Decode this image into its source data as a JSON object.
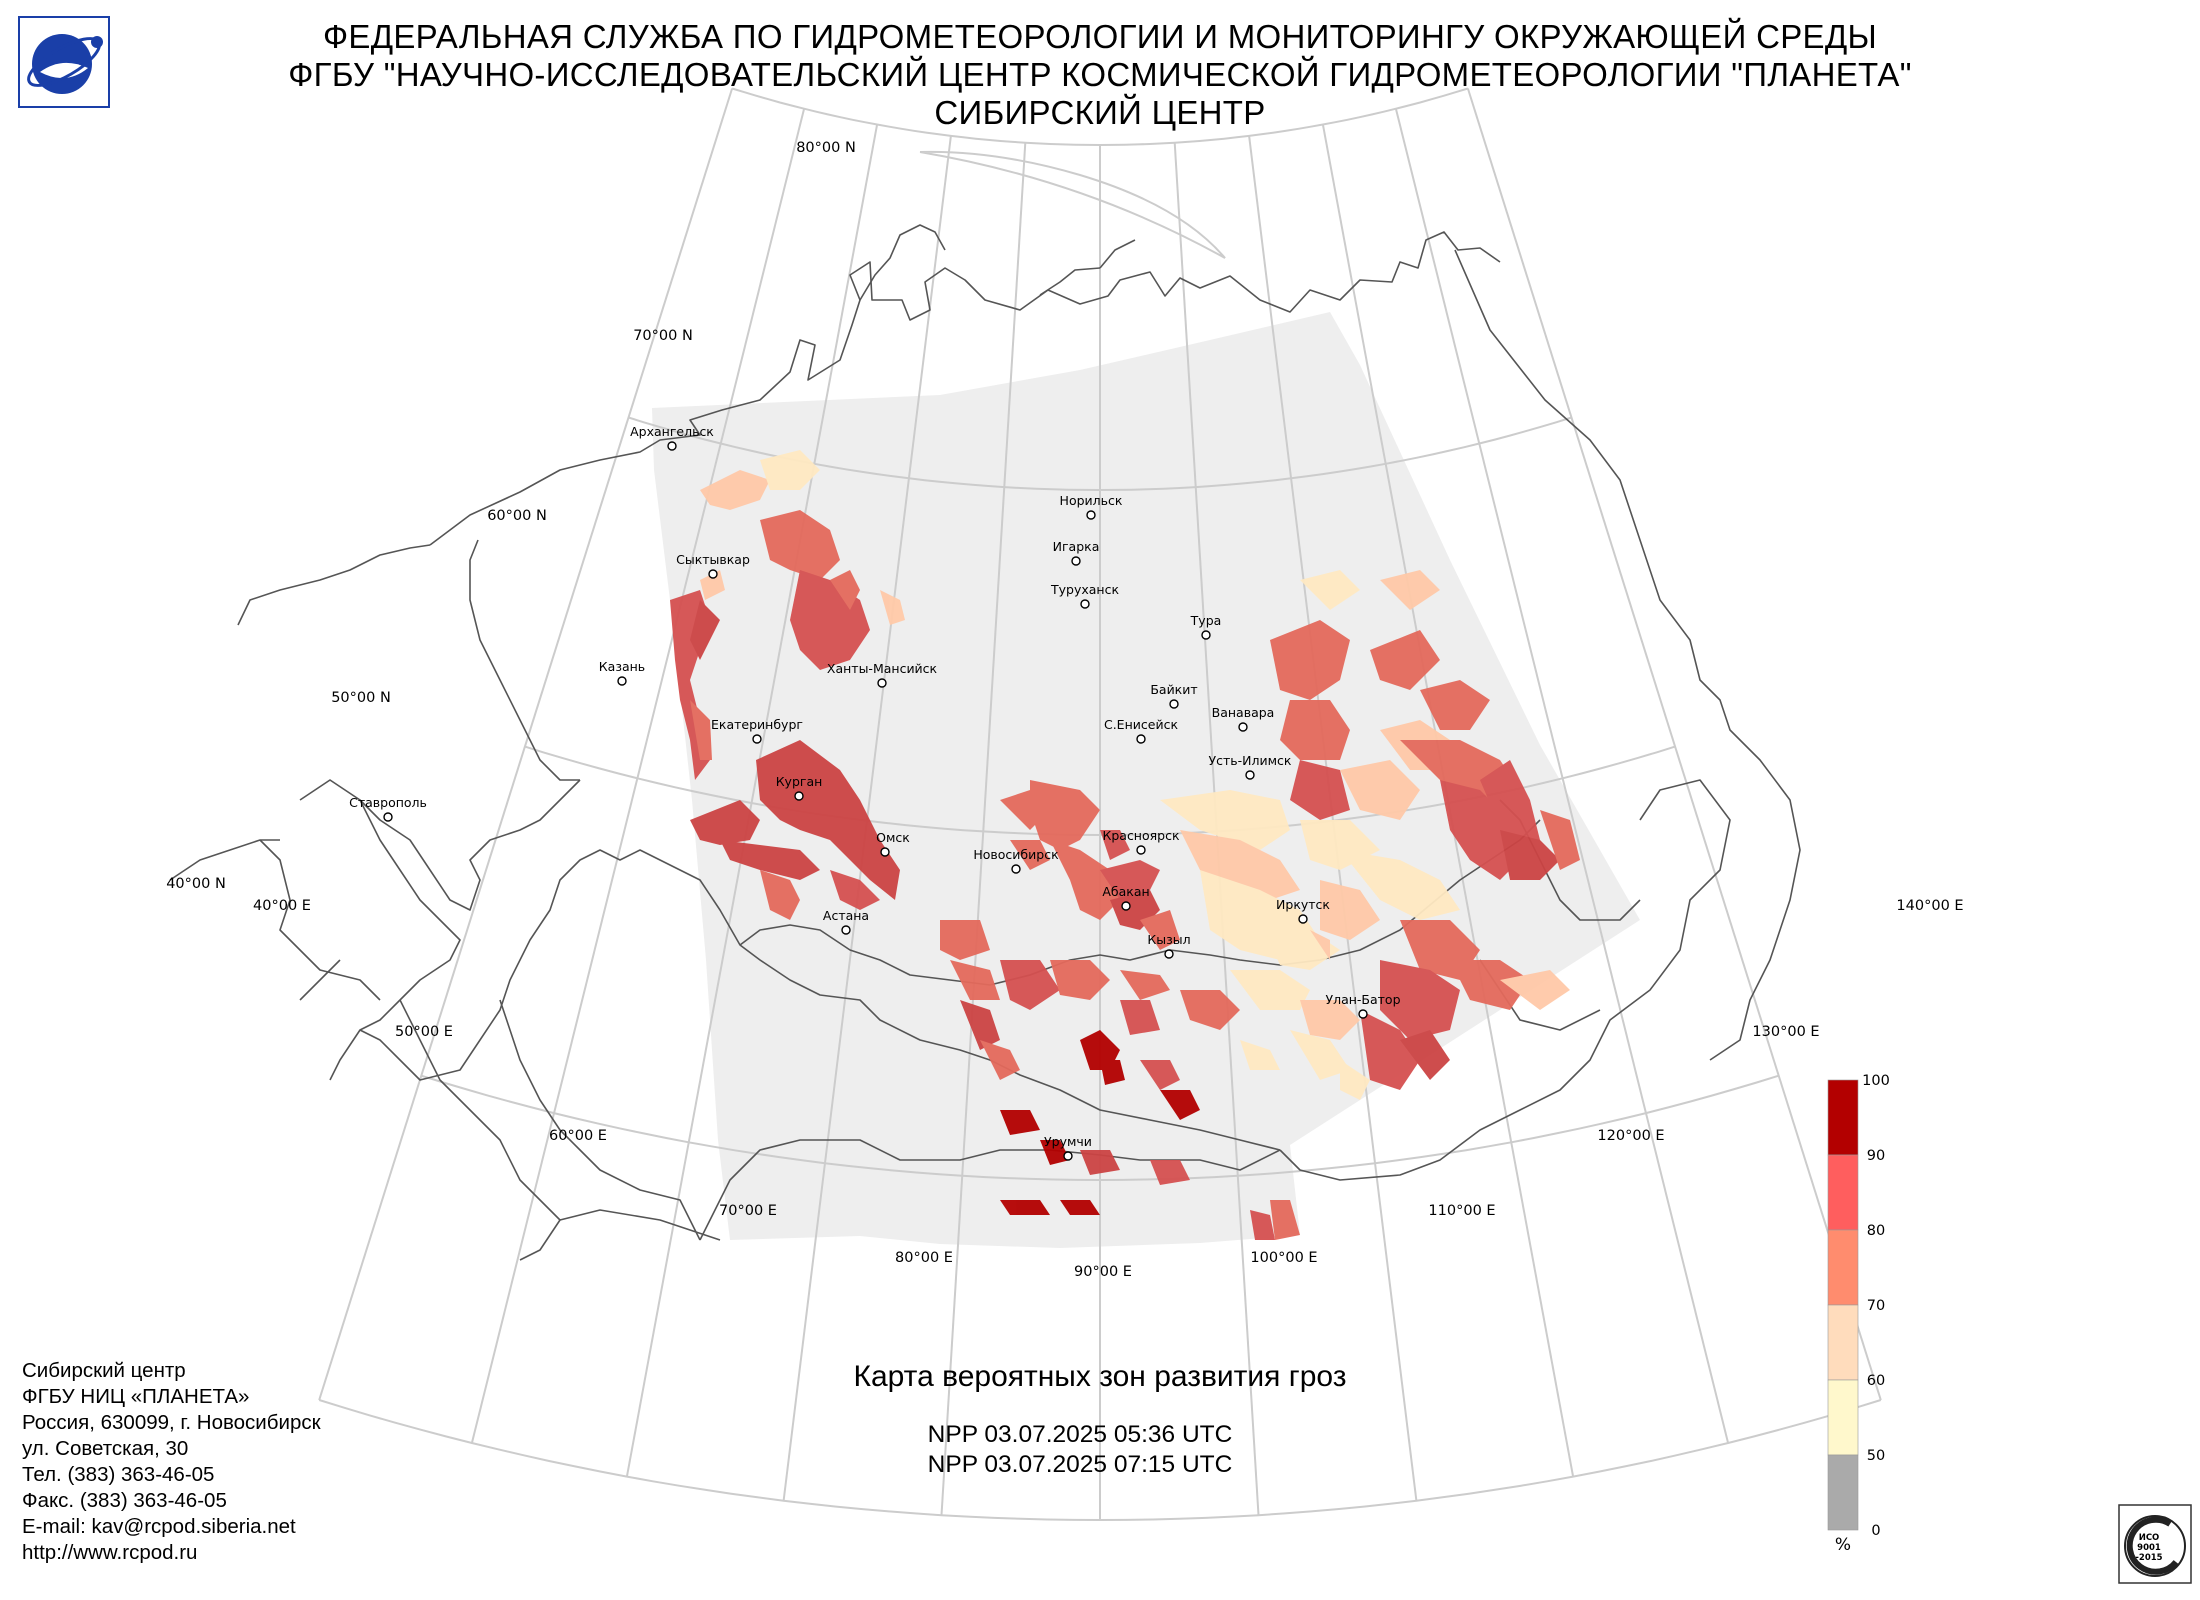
{
  "header": {
    "line1": "ФЕДЕРАЛЬНАЯ СЛУЖБА ПО ГИДРОМЕТЕОРОЛОГИИ И МОНИТОРИНГУ ОКРУЖАЮЩЕЙ СРЕДЫ",
    "line2": "ФГБУ \"НАУЧНО-ИССЛЕДОВАТЕЛЬСКИЙ ЦЕНТР КОСМИЧЕСКОЙ ГИДРОМЕТЕОРОЛОГИИ \"ПЛАНЕТА\"",
    "line3": "СИБИРСКИЙ ЦЕНТР"
  },
  "map": {
    "title": "Карта вероятных зон развития гроз",
    "passes": [
      "NPP 03.07.2025  05:36 UTC",
      "NPP 03.07.2025  07:15 UTC"
    ],
    "projection": "conic",
    "colors": {
      "grid": "#cccccc",
      "border": "#555555",
      "swath": "#eeeeee"
    },
    "latitude_labels": [
      "80°00 N",
      "70°00 N",
      "60°00 N",
      "50°00 N",
      "40°00 N"
    ],
    "longitude_labels": [
      "40°00 E",
      "50°00 E",
      "60°00 E",
      "70°00 E",
      "80°00 E",
      "90°00 E",
      "100°00 E",
      "110°00 E",
      "120°00 E",
      "130°00 E",
      "140°00 E"
    ],
    "cities": [
      "Архангельск",
      "Сыктывкар",
      "Казань",
      "Ханты-Мансийск",
      "Екатеринбург",
      "Ставрополь",
      "Курган",
      "Омск",
      "Астана",
      "Новосибирск",
      "Норильск",
      "Игарка",
      "Туруханск",
      "Тура",
      "Байкит",
      "Ванавара",
      "С.Енисейск",
      "Усть-Илимск",
      "Красноярск",
      "Абакан",
      "Кызыл",
      "Иркутск",
      "Улан-Батор",
      "Урумчи"
    ]
  },
  "legend": {
    "ticks": [
      "100",
      "90",
      "80",
      "70",
      "60",
      "50",
      "0"
    ],
    "unit": "%",
    "colors": [
      "#b30000",
      "#ff5e5e",
      "#ff8c6e",
      "#ffdcbc",
      "#fff8cc",
      "#aaaaaa"
    ]
  },
  "contacts": [
    "Сибирский центр",
    "ФГБУ НИЦ «ПЛАНЕТА»",
    "Россия, 630099, г. Новосибирск",
    "ул. Советская, 30",
    "Тел. (383) 363-46-05",
    "Факс. (383) 363-46-05",
    "E-mail: kav@rcpod.siberia.net",
    "http://www.rcpod.ru"
  ],
  "iso_badge": {
    "line1": "ИСО",
    "line2": "9001",
    "line3": "-2015"
  }
}
